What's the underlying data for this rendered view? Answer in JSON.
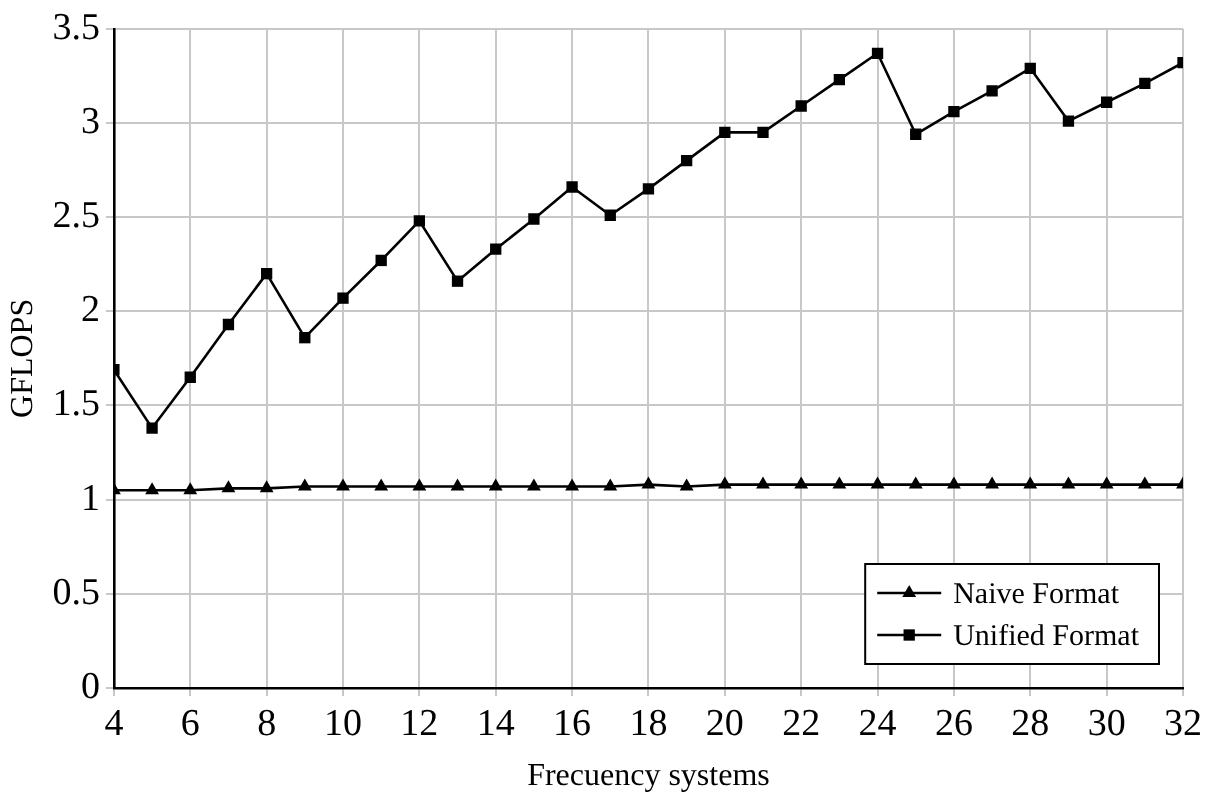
{
  "chart_data": {
    "type": "line",
    "xlabel": "Frecuency systems",
    "ylabel": "GFLOPS",
    "x": [
      4,
      5,
      6,
      7,
      8,
      9,
      10,
      11,
      12,
      13,
      14,
      15,
      16,
      17,
      18,
      19,
      20,
      21,
      22,
      23,
      24,
      25,
      26,
      27,
      28,
      29,
      30,
      31,
      32
    ],
    "series": [
      {
        "name": "Naive Format",
        "color": "#000000",
        "marker": "triangle",
        "values": [
          1.05,
          1.05,
          1.05,
          1.06,
          1.06,
          1.07,
          1.07,
          1.07,
          1.07,
          1.07,
          1.07,
          1.07,
          1.07,
          1.07,
          1.08,
          1.07,
          1.08,
          1.08,
          1.08,
          1.08,
          1.08,
          1.08,
          1.08,
          1.08,
          1.08,
          1.08,
          1.08,
          1.08,
          1.08
        ]
      },
      {
        "name": "Unified Format",
        "color": "#000000",
        "marker": "square",
        "values": [
          1.69,
          1.38,
          1.65,
          1.93,
          2.2,
          1.86,
          2.07,
          2.27,
          2.48,
          2.16,
          2.33,
          2.49,
          2.66,
          2.51,
          2.65,
          2.8,
          2.95,
          2.95,
          3.09,
          3.23,
          3.37,
          2.94,
          3.06,
          3.17,
          3.29,
          3.01,
          3.11,
          3.21,
          3.32
        ]
      }
    ],
    "xlim": [
      4,
      32
    ],
    "xticks": [
      4,
      6,
      8,
      10,
      12,
      14,
      16,
      18,
      20,
      22,
      24,
      26,
      28,
      30,
      32
    ],
    "ylim": [
      0,
      3.5
    ],
    "yticks": [
      0,
      0.5,
      1,
      1.5,
      2,
      2.5,
      3,
      3.5
    ],
    "grid": true,
    "legend": "bottom right",
    "line_style": "solid"
  }
}
